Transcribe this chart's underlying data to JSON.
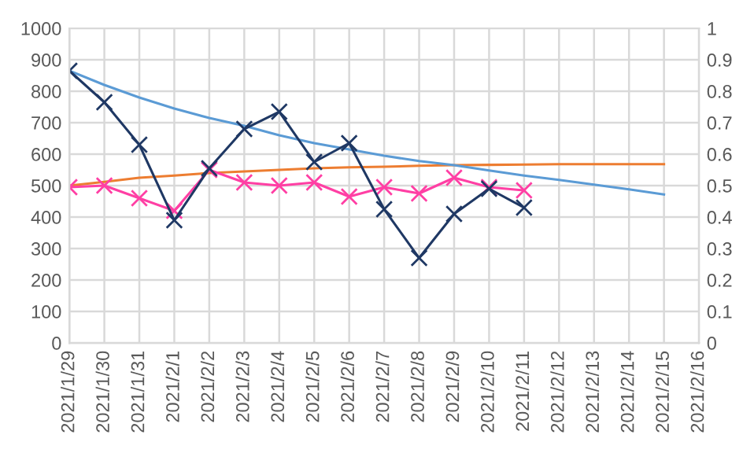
{
  "chart_data": {
    "type": "line",
    "x": [
      "2021-01-29",
      "2021-01-30",
      "2021-01-31",
      "2021-02-01",
      "2021-02-02",
      "2021-02-03",
      "2021-02-04",
      "2021-02-05",
      "2021-02-06",
      "2021-02-07",
      "2021-02-08",
      "2021-02-09",
      "2021-02-10",
      "2021-02-11"
    ],
    "series": [
      {
        "color": "#1f3864",
        "marker": "cross",
        "values": [
          865,
          765,
          630,
          390,
          555,
          680,
          735,
          575,
          635,
          425,
          270,
          410,
          490,
          430
        ]
      },
      {
        "color": "#ff3fa4",
        "marker": "cross",
        "values": [
          495,
          500,
          460,
          420,
          550,
          510,
          500,
          510,
          465,
          495,
          475,
          525,
          495,
          485
        ]
      },
      {
        "color": "#5b9bd5",
        "marker": "none",
        "x": [
          "2021-01-29",
          "2021-01-30",
          "2021-01-31",
          "2021-02-01",
          "2021-02-02",
          "2021-02-03",
          "2021-02-04",
          "2021-02-05",
          "2021-02-06",
          "2021-02-07",
          "2021-02-08",
          "2021-02-09",
          "2021-02-10",
          "2021-02-11",
          "2021-02-12",
          "2021-02-13",
          "2021-02-14",
          "2021-02-15"
        ],
        "values": [
          865,
          820,
          780,
          745,
          715,
          690,
          660,
          635,
          615,
          595,
          578,
          565,
          548,
          532,
          518,
          503,
          488,
          472
        ]
      },
      {
        "color": "#ed7d31",
        "marker": "none",
        "x": [
          "2021-01-29",
          "2021-01-30",
          "2021-01-31",
          "2021-02-01",
          "2021-02-02",
          "2021-02-03",
          "2021-02-04",
          "2021-02-05",
          "2021-02-06",
          "2021-02-07",
          "2021-02-08",
          "2021-02-09",
          "2021-02-10",
          "2021-02-11",
          "2021-02-12",
          "2021-02-13",
          "2021-02-14",
          "2021-02-15"
        ],
        "values": [
          500,
          512,
          525,
          532,
          540,
          545,
          550,
          555,
          558,
          560,
          563,
          565,
          566,
          567,
          568,
          568,
          568,
          568
        ]
      }
    ],
    "xlim": [
      "2021-01-29",
      "2021-02-16"
    ],
    "xticks": [
      {
        "value": "2021-01-29",
        "label": "2021/1/29"
      },
      {
        "value": "2021-01-30",
        "label": "2021/1/30"
      },
      {
        "value": "2021-01-31",
        "label": "2021/1/31"
      },
      {
        "value": "2021-02-01",
        "label": "2021/2/1"
      },
      {
        "value": "2021-02-02",
        "label": "2021/2/2"
      },
      {
        "value": "2021-02-03",
        "label": "2021/2/3"
      },
      {
        "value": "2021-02-04",
        "label": "2021/2/4"
      },
      {
        "value": "2021-02-05",
        "label": "2021/2/5"
      },
      {
        "value": "2021-02-06",
        "label": "2021/2/6"
      },
      {
        "value": "2021-02-07",
        "label": "2021/2/7"
      },
      {
        "value": "2021-02-08",
        "label": "2021/2/8"
      },
      {
        "value": "2021-02-09",
        "label": "2021/2/9"
      },
      {
        "value": "2021-02-10",
        "label": "2021/2/10"
      },
      {
        "value": "2021-02-11",
        "label": "2021/2/11"
      },
      {
        "value": "2021-02-12",
        "label": "2021/2/12"
      },
      {
        "value": "2021-02-13",
        "label": "2021/2/13"
      },
      {
        "value": "2021-02-14",
        "label": "2021/2/14"
      },
      {
        "value": "2021-02-15",
        "label": "2021/2/15"
      },
      {
        "value": "2021-02-16",
        "label": "2021/2/16"
      }
    ],
    "ylim": [
      0,
      1000
    ],
    "yticks": [
      0,
      100,
      200,
      300,
      400,
      500,
      600,
      700,
      800,
      900,
      1000
    ],
    "y2lim": [
      0,
      1
    ],
    "y2ticks": [
      0,
      0.1,
      0.2,
      0.3,
      0.4,
      0.5,
      0.6,
      0.7,
      0.8,
      0.9,
      1
    ],
    "grid": true,
    "line_style": "solid"
  }
}
